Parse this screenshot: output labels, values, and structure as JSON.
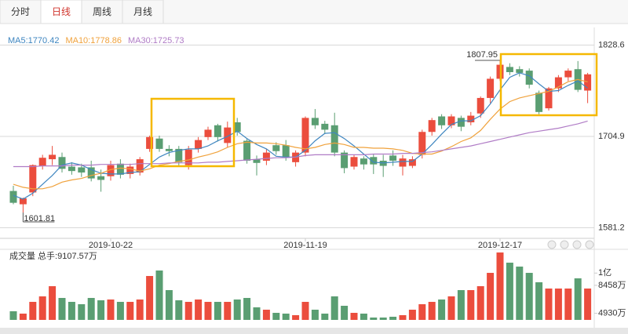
{
  "tabs": [
    "分时",
    "日线",
    "周线",
    "月线"
  ],
  "active_tab": 1,
  "chart_data": {
    "type": "candlestick",
    "categories": [
      null,
      null,
      null,
      null,
      null,
      null,
      null,
      null,
      null,
      null,
      "2019-10-22",
      null,
      null,
      null,
      null,
      null,
      null,
      null,
      null,
      null,
      null,
      null,
      null,
      null,
      null,
      null,
      null,
      null,
      null,
      null,
      "2019-11-19",
      null,
      null,
      null,
      null,
      null,
      null,
      null,
      null,
      null,
      null,
      null,
      null,
      null,
      null,
      null,
      null,
      null,
      null,
      null,
      "2019-12-17",
      null,
      null,
      null,
      null,
      null,
      null,
      null,
      null,
      null
    ],
    "open": [
      1631,
      1613,
      1629,
      1665,
      1674,
      1677,
      1664,
      1663,
      1663,
      1651,
      1651,
      1668,
      1654,
      1656,
      1688,
      1702,
      1688,
      1688,
      1666,
      1688,
      1704,
      1720,
      1696,
      1724,
      1699,
      1674,
      1672,
      1693,
      1693,
      1670,
      1683,
      1730,
      1722,
      1720,
      1683,
      1664,
      1675,
      1677,
      1672,
      1679,
      1664,
      1665,
      1680,
      1711,
      1732,
      1720,
      1730,
      1724,
      1736,
      1757,
      1783,
      1799,
      1796,
      1794,
      1764,
      1743,
      1770,
      1785,
      1796,
      1767
    ],
    "high": [
      1638,
      1622,
      1667,
      1680,
      1692,
      1683,
      1670,
      1668,
      1672,
      1660,
      1672,
      1674,
      1668,
      1677,
      1706,
      1706,
      1693,
      1692,
      1692,
      1704,
      1718,
      1722,
      1725,
      1730,
      1702,
      1679,
      1688,
      1697,
      1700,
      1686,
      1732,
      1742,
      1726,
      1737,
      1686,
      1680,
      1678,
      1681,
      1680,
      1686,
      1680,
      1678,
      1714,
      1730,
      1735,
      1735,
      1733,
      1738,
      1759,
      1786,
      1807.95,
      1804,
      1800,
      1797,
      1767,
      1772,
      1788,
      1797,
      1807,
      1791
    ],
    "low": [
      1613,
      1601.81,
      1624,
      1660,
      1666,
      1656,
      1653,
      1650,
      1644,
      1630,
      1645,
      1648,
      1648,
      1652,
      1684,
      1684,
      1678,
      1665,
      1660,
      1683,
      1700,
      1698,
      1690,
      1706,
      1668,
      1652,
      1666,
      1680,
      1672,
      1664,
      1678,
      1715,
      1708,
      1678,
      1655,
      1660,
      1660,
      1654,
      1650,
      1665,
      1652,
      1662,
      1675,
      1706,
      1715,
      1716,
      1712,
      1720,
      1730,
      1750,
      1780,
      1788,
      1786,
      1770,
      1735,
      1740,
      1765,
      1780,
      1765,
      1750
    ],
    "close": [
      1615,
      1621,
      1666,
      1676,
      1680,
      1661,
      1658,
      1656,
      1648,
      1646,
      1666,
      1653,
      1664,
      1674,
      1704,
      1688,
      1685,
      1670,
      1687,
      1700,
      1714,
      1704,
      1717,
      1711,
      1672,
      1669,
      1683,
      1685,
      1677,
      1683,
      1730,
      1720,
      1714,
      1683,
      1662,
      1677,
      1667,
      1667,
      1665,
      1672,
      1675,
      1674,
      1711,
      1727,
      1720,
      1732,
      1718,
      1733,
      1757,
      1783,
      1802,
      1792,
      1791,
      1775,
      1738,
      1770,
      1785,
      1794,
      1768,
      1789
    ],
    "up_color": "#eb4d3d",
    "down_color": "#5a9e72",
    "ylim": [
      1573.2,
      1841.9
    ],
    "yticks": [
      1581.2,
      1704.9,
      1828.6
    ],
    "grid": true,
    "high_label": "1807.95",
    "low_label": "1601.81",
    "ma": [
      {
        "name": "MA5:1770.42",
        "color": "#3f86c0",
        "values": [
          1625,
          1620,
          1628,
          1640,
          1652,
          1666,
          1669,
          1666,
          1660,
          1655,
          1654,
          1654,
          1656,
          1657,
          1667,
          1677,
          1683,
          1686,
          1688,
          1688,
          1692,
          1699,
          1705,
          1712,
          1702,
          1694,
          1688,
          1678,
          1677,
          1677,
          1686,
          1699,
          1709,
          1710,
          1702,
          1692,
          1681,
          1670,
          1669,
          1670,
          1671,
          1671,
          1681,
          1694,
          1708,
          1721,
          1726,
          1726,
          1733,
          1749,
          1768,
          1785,
          1791,
          1787,
          1776,
          1766,
          1767,
          1774,
          1780,
          1770.42
        ]
      },
      {
        "name": "MA10:1778.86",
        "color": "#f0a23c",
        "values": [
          1640,
          1636,
          1634,
          1634,
          1637,
          1643,
          1646,
          1648,
          1652,
          1655,
          1660,
          1662,
          1661,
          1658,
          1661,
          1666,
          1668,
          1671,
          1673,
          1677,
          1680,
          1684,
          1690,
          1695,
          1697,
          1696,
          1696,
          1695,
          1693,
          1690,
          1688,
          1690,
          1694,
          1696,
          1694,
          1690,
          1690,
          1689,
          1689,
          1688,
          1686,
          1682,
          1681,
          1681,
          1685,
          1691,
          1698,
          1703,
          1713,
          1728,
          1742,
          1752,
          1757,
          1760,
          1763,
          1766,
          1772,
          1779,
          1782,
          1778.86
        ]
      },
      {
        "name": "MA30:1725.73",
        "color": "#b07cc6",
        "values": [
          1664,
          1664,
          1664,
          1665,
          1665,
          1665,
          1666,
          1666,
          1666,
          1667,
          1667,
          1667,
          1667,
          1668,
          1668,
          1668,
          1669,
          1669,
          1669,
          1669,
          1670,
          1670,
          1671,
          1672,
          1673,
          1674,
          1675,
          1676,
          1676,
          1677,
          1679,
          1680,
          1680,
          1680,
          1680,
          1680,
          1680,
          1681,
          1681,
          1681,
          1682,
          1682,
          1683,
          1684,
          1686,
          1688,
          1690,
          1692,
          1695,
          1698,
          1701,
          1704,
          1707,
          1710,
          1712,
          1714,
          1716,
          1719,
          1722,
          1725.73
        ]
      }
    ],
    "volume_title": "成交量 总手:9107.57万",
    "volume": [
      5187,
      4890,
      6372,
      7064,
      8348,
      6866,
      6372,
      6076,
      6866,
      6570,
      6669,
      6372,
      6372,
      6669,
      9633,
      10324,
      7854,
      6570,
      6372,
      6669,
      6372,
      6372,
      6372,
      6669,
      6866,
      5681,
      5384,
      4988,
      4890,
      4693,
      6372,
      5384,
      4890,
      7064,
      5878,
      4988,
      4890,
      4396,
      4396,
      4495,
      4693,
      5384,
      6076,
      6372,
      6669,
      7064,
      7854,
      7854,
      8348,
      10028,
      12597,
      11312,
      10818,
      10028,
      8842,
      8052,
      8052,
      8052,
      9337,
      8052
    ],
    "vlim": [
      4100,
      12600
    ],
    "vticks": [
      {
        "value": 4930,
        "label": "4930万"
      },
      {
        "value": 8458,
        "label": "8458万"
      },
      {
        "value": 10000,
        "label": "1亿"
      }
    ]
  }
}
